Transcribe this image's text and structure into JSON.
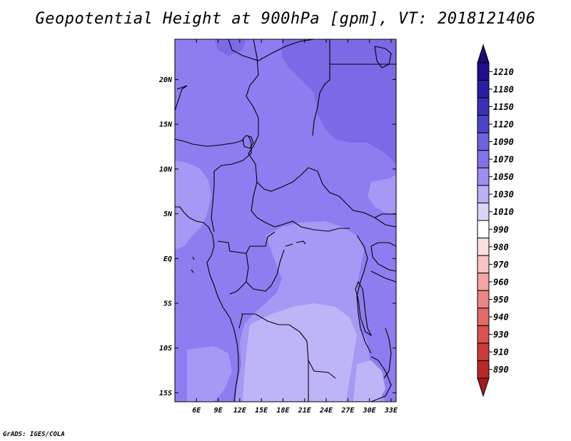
{
  "title": "Geopotential Height at 900hPa [gpm], VT: 2018121406",
  "credit": "GrADS: IGES/COLA",
  "map": {
    "lat_range": [
      -16,
      24.5
    ],
    "lon_range": [
      3,
      33.7
    ],
    "lat_ticks": [
      {
        "value": 20,
        "label": "20N"
      },
      {
        "value": 15,
        "label": "15N"
      },
      {
        "value": 10,
        "label": "10N"
      },
      {
        "value": 5,
        "label": "5N"
      },
      {
        "value": 0,
        "label": "EQ"
      },
      {
        "value": -5,
        "label": "5S"
      },
      {
        "value": -10,
        "label": "10S"
      },
      {
        "value": -15,
        "label": "15S"
      }
    ],
    "lon_ticks": [
      {
        "value": 6,
        "label": "6E"
      },
      {
        "value": 9,
        "label": "9E"
      },
      {
        "value": 12,
        "label": "12E"
      },
      {
        "value": 15,
        "label": "15E"
      },
      {
        "value": 18,
        "label": "18E"
      },
      {
        "value": 21,
        "label": "21E"
      },
      {
        "value": 24,
        "label": "24E"
      },
      {
        "value": 27,
        "label": "27E"
      },
      {
        "value": 30,
        "label": "30E"
      },
      {
        "value": 33,
        "label": "33E"
      }
    ]
  },
  "colorbar": {
    "levels": [
      {
        "label": "1210",
        "color": "#1f0f8a"
      },
      {
        "label": "1180",
        "color": "#2a1fa3"
      },
      {
        "label": "1150",
        "color": "#3a30b8"
      },
      {
        "label": "1120",
        "color": "#4a44c8"
      },
      {
        "label": "1090",
        "color": "#6a63dc"
      },
      {
        "label": "1070",
        "color": "#8272ea"
      },
      {
        "label": "1050",
        "color": "#9e8ef4"
      },
      {
        "label": "1030",
        "color": "#bab0f6"
      },
      {
        "label": "1010",
        "color": "#d9d4fa"
      },
      {
        "label": "990",
        "color": "#ffffff"
      },
      {
        "label": "980",
        "color": "#fbe0e0"
      },
      {
        "label": "970",
        "color": "#f8c4c4"
      },
      {
        "label": "960",
        "color": "#f3a4a4"
      },
      {
        "label": "950",
        "color": "#ec8585"
      },
      {
        "label": "940",
        "color": "#e46a6a"
      },
      {
        "label": "930",
        "color": "#da5050"
      },
      {
        "label": "910",
        "color": "#cc3a3a"
      },
      {
        "label": "890",
        "color": "#b82828"
      }
    ],
    "top_color": "#1a0c7a",
    "bottom_color": "#a01e1e"
  }
}
